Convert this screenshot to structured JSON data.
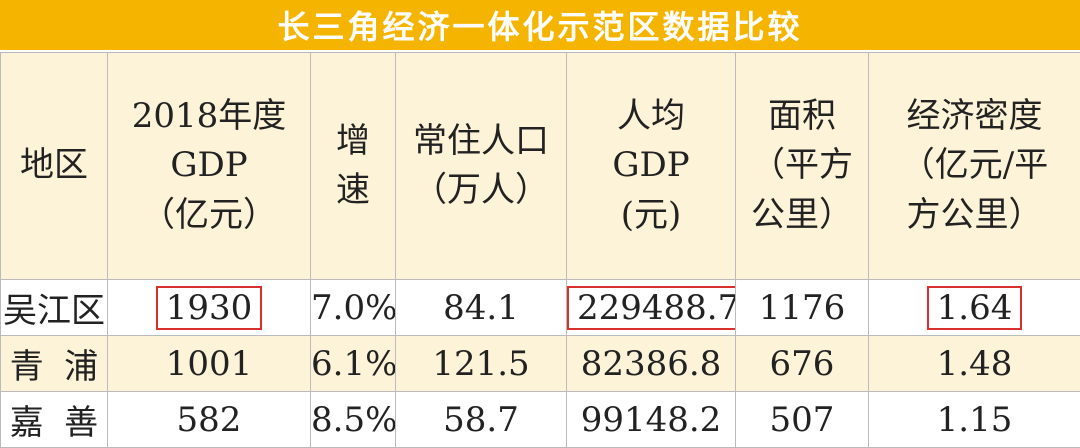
{
  "title": "长三角经济一体化示范区数据比较",
  "table": {
    "header": [
      [
        "地区"
      ],
      [
        "2018年度",
        "GDP",
        "（亿元）"
      ],
      [
        "增",
        "速"
      ],
      [
        "常住人口",
        "（万人）"
      ],
      [
        "人均",
        "GDP",
        "(元)"
      ],
      [
        "面积",
        "（平方",
        "公里）"
      ],
      [
        "经济密度",
        "（亿元/平",
        "方公里）"
      ]
    ],
    "rows": [
      [
        "吴江区",
        "1930",
        "7.0%",
        "84.1",
        "229488.7",
        "1176",
        "1.64"
      ],
      [
        "青浦",
        "1001",
        "6.1%",
        "121.5",
        "82386.8",
        "676",
        "1.48"
      ],
      [
        "嘉善",
        "582",
        "8.5%",
        "58.7",
        "99148.2",
        "507",
        "1.15"
      ]
    ]
  }
}
